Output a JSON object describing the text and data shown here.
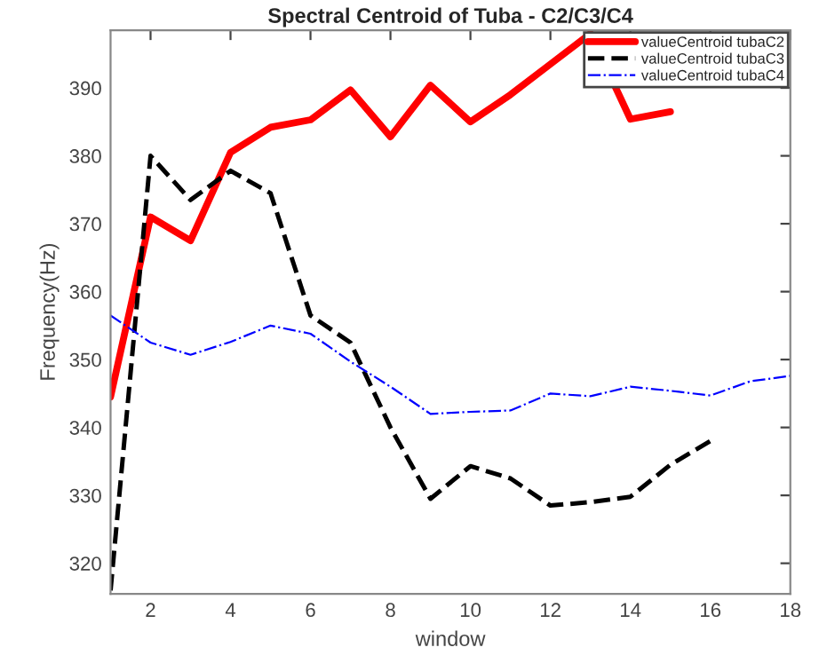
{
  "chart_data": {
    "type": "line",
    "title": "Spectral Centroid of Tuba - C2/C3/C4",
    "xlabel": "window",
    "ylabel": "Frequency(Hz)",
    "x": [
      1,
      2,
      3,
      4,
      5,
      6,
      7,
      8,
      9,
      10,
      11,
      12,
      13,
      14,
      15,
      16,
      17,
      18
    ],
    "series": [
      {
        "name": "valueCentroid tubaC2",
        "color": "#ff0000",
        "line_style": "solid",
        "values": [
          344.5,
          371,
          367.5,
          380.5,
          384.2,
          385.3,
          389.7,
          382.8,
          390.4,
          385,
          389,
          393.5,
          398,
          385.4,
          386.5,
          null,
          null,
          null
        ]
      },
      {
        "name": "valueCentroid tubaC3",
        "color": "#000000",
        "line_style": "dashed",
        "values": [
          316,
          380,
          373.5,
          377.8,
          374.5,
          356.5,
          352.5,
          340,
          329.5,
          334.3,
          332.5,
          328.5,
          329,
          329.8,
          334.5,
          338,
          null,
          null
        ]
      },
      {
        "name": "valueCentroid tubaC4",
        "color": "#0000ff",
        "line_style": "dotted",
        "values": [
          356.5,
          352.5,
          350.7,
          352.6,
          355,
          353.8,
          349.7,
          346,
          342,
          342.3,
          342.5,
          345,
          344.6,
          346,
          345.4,
          344.7,
          346.8,
          347.6
        ]
      }
    ],
    "xlim": [
      1,
      18
    ],
    "xticks": [
      2,
      4,
      6,
      8,
      10,
      12,
      14,
      16,
      18
    ],
    "ylim": [
      315.5,
      398.5
    ],
    "yticks": [
      320,
      330,
      340,
      350,
      360,
      370,
      380,
      390
    ],
    "grid": false,
    "legend": "top right",
    "marker": "none"
  }
}
